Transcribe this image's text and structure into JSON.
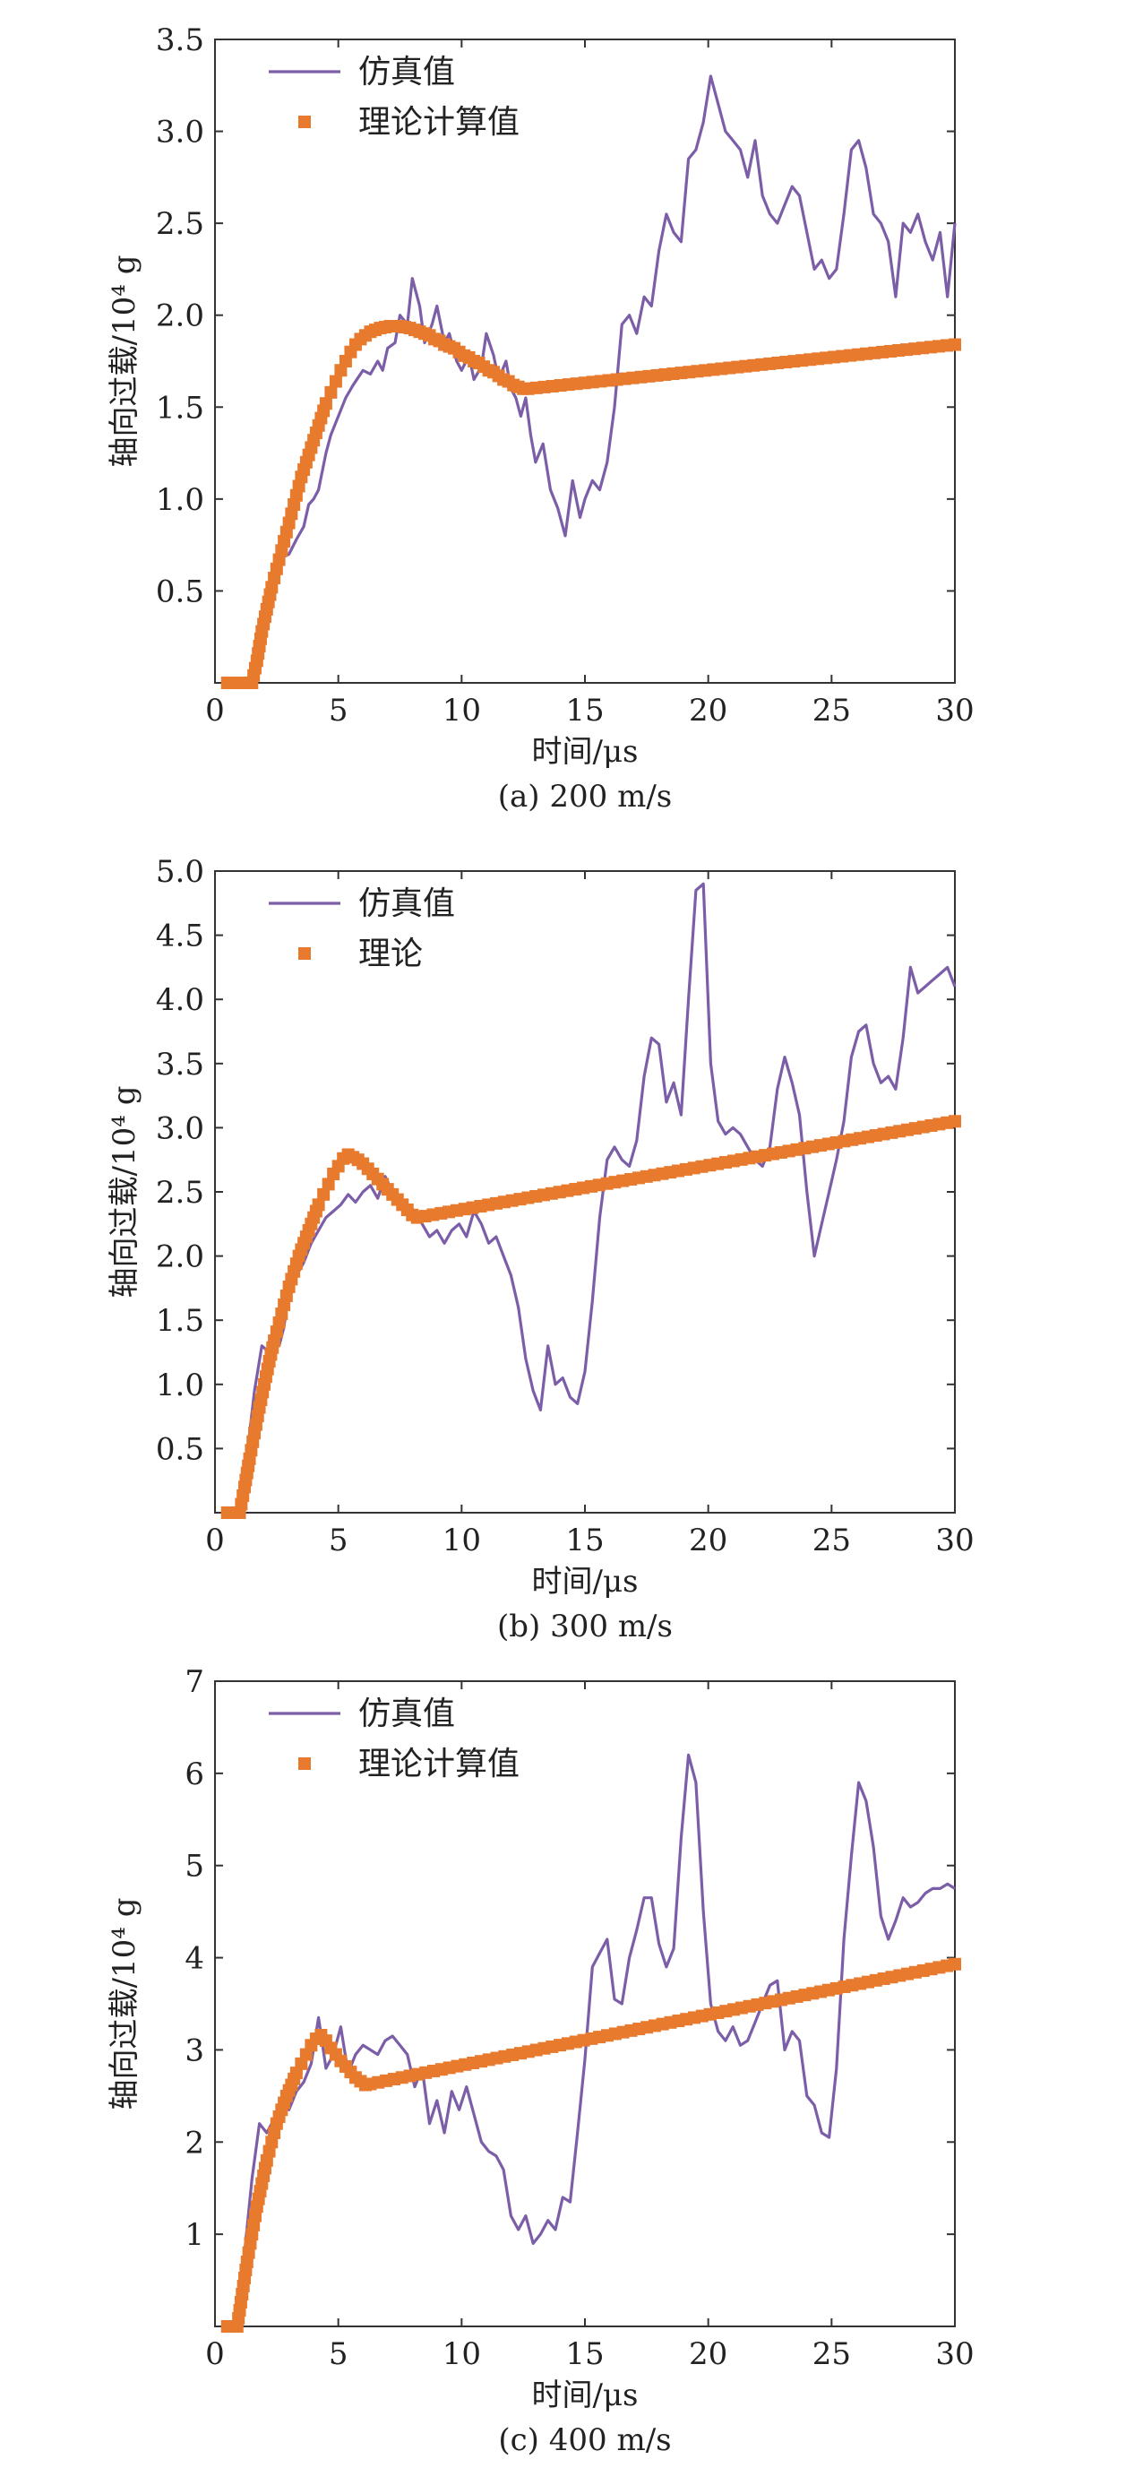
{
  "chart_data": [
    {
      "type": "line",
      "caption": "(a) 200 m/s",
      "xlabel": "时间/μs",
      "ylabel": "轴向过载/10⁴ g",
      "xlim": [
        0,
        30
      ],
      "ylim": [
        0,
        3.5
      ],
      "xticks": [
        "0",
        "5",
        "10",
        "15",
        "20",
        "25",
        "30"
      ],
      "yticks": [
        "0.5",
        "1.0",
        "1.5",
        "2.0",
        "2.5",
        "3.0",
        "3.5"
      ],
      "legend_position": "top-left",
      "series": [
        {
          "name": "仿真值",
          "style": "line",
          "color": "#7b5ea7",
          "x": [
            0.5,
            1.6,
            2.0,
            2.3,
            2.7,
            3.0,
            3.3,
            3.6,
            3.8,
            4.0,
            4.2,
            4.5,
            4.7,
            5.0,
            5.3,
            5.6,
            6.0,
            6.3,
            6.6,
            6.8,
            7.0,
            7.3,
            7.5,
            7.8,
            8.0,
            8.3,
            8.5,
            8.8,
            9.0,
            9.3,
            9.5,
            9.8,
            10.0,
            10.3,
            10.5,
            10.8,
            11.0,
            11.3,
            11.5,
            11.8,
            12.0,
            12.2,
            12.4,
            12.6,
            12.8,
            13.0,
            13.3,
            13.6,
            13.9,
            14.2,
            14.5,
            14.8,
            15.0,
            15.3,
            15.6,
            15.9,
            16.2,
            16.5,
            16.8,
            17.1,
            17.4,
            17.7,
            18.0,
            18.3,
            18.6,
            18.9,
            19.2,
            19.5,
            19.8,
            20.1,
            20.4,
            20.7,
            21.0,
            21.3,
            21.6,
            21.9,
            22.2,
            22.5,
            22.8,
            23.1,
            23.4,
            23.7,
            24.0,
            24.3,
            24.6,
            24.9,
            25.2,
            25.5,
            25.8,
            26.1,
            26.4,
            26.7,
            27.0,
            27.3,
            27.6,
            27.9,
            28.2,
            28.5,
            28.8,
            29.1,
            29.4,
            29.7,
            30.0
          ],
          "y": [
            0,
            0,
            0.35,
            0.58,
            0.68,
            0.7,
            0.78,
            0.85,
            0.97,
            1.0,
            1.05,
            1.25,
            1.35,
            1.45,
            1.55,
            1.62,
            1.7,
            1.68,
            1.75,
            1.7,
            1.82,
            1.85,
            2.0,
            1.95,
            2.2,
            2.05,
            1.85,
            1.95,
            2.05,
            1.85,
            1.9,
            1.75,
            1.7,
            1.78,
            1.65,
            1.72,
            1.9,
            1.78,
            1.65,
            1.75,
            1.6,
            1.55,
            1.45,
            1.55,
            1.35,
            1.2,
            1.3,
            1.05,
            0.95,
            0.8,
            1.1,
            0.9,
            1.0,
            1.1,
            1.05,
            1.2,
            1.5,
            1.95,
            2.0,
            1.9,
            2.1,
            2.05,
            2.35,
            2.55,
            2.45,
            2.4,
            2.85,
            2.9,
            3.05,
            3.3,
            3.15,
            3.0,
            2.95,
            2.9,
            2.75,
            2.95,
            2.65,
            2.55,
            2.5,
            2.6,
            2.7,
            2.65,
            2.45,
            2.25,
            2.3,
            2.2,
            2.25,
            2.55,
            2.9,
            2.95,
            2.8,
            2.55,
            2.5,
            2.4,
            2.1,
            2.5,
            2.45,
            2.55,
            2.4,
            2.3,
            2.45,
            2.1,
            2.5
          ]
        },
        {
          "name": "理论计算值",
          "style": "markers",
          "color": "#e87a2e",
          "x": [
            0.5,
            1.5,
            1.7,
            1.9,
            2.1,
            2.3,
            2.5,
            2.7,
            2.9,
            3.1,
            3.3,
            3.5,
            3.7,
            3.9,
            4.1,
            4.3,
            4.5,
            4.7,
            4.9,
            5.1,
            5.3,
            5.5,
            5.7,
            5.9,
            6.1,
            6.3,
            6.5,
            6.7,
            6.9,
            7.1,
            7.3,
            7.5,
            7.7,
            7.9,
            8.1,
            8.3,
            8.5,
            8.7,
            8.9,
            9.1,
            9.3,
            9.5,
            9.7,
            9.9,
            10.1,
            10.3,
            10.5,
            10.7,
            10.9,
            11.1,
            11.3,
            11.5,
            11.7,
            11.9,
            12.1,
            12.3,
            12.5,
            12.7,
            30.0
          ],
          "y": [
            0,
            0,
            0.12,
            0.28,
            0.4,
            0.52,
            0.62,
            0.72,
            0.82,
            0.92,
            1.02,
            1.12,
            1.2,
            1.28,
            1.36,
            1.44,
            1.52,
            1.58,
            1.64,
            1.7,
            1.75,
            1.8,
            1.84,
            1.87,
            1.89,
            1.91,
            1.92,
            1.93,
            1.935,
            1.94,
            1.94,
            1.94,
            1.935,
            1.93,
            1.92,
            1.91,
            1.9,
            1.89,
            1.87,
            1.86,
            1.84,
            1.83,
            1.82,
            1.8,
            1.78,
            1.77,
            1.75,
            1.74,
            1.72,
            1.7,
            1.69,
            1.67,
            1.65,
            1.64,
            1.62,
            1.61,
            1.6,
            1.6,
            1.84
          ]
        }
      ]
    },
    {
      "type": "line",
      "caption": "(b) 300 m/s",
      "xlabel": "时间/μs",
      "ylabel": "轴向过载/10⁴ g",
      "xlim": [
        0,
        30
      ],
      "ylim": [
        0,
        5.0
      ],
      "xticks": [
        "0",
        "5",
        "10",
        "15",
        "20",
        "25",
        "30"
      ],
      "yticks": [
        "0.5",
        "1.0",
        "1.5",
        "2.0",
        "2.5",
        "3.0",
        "3.5",
        "4.0",
        "4.5",
        "5.0"
      ],
      "legend_position": "top-left",
      "series": [
        {
          "name": "仿真值",
          "style": "line",
          "color": "#7b5ea7",
          "x": [
            0.5,
            1.0,
            1.3,
            1.6,
            1.9,
            2.2,
            2.4,
            2.6,
            2.8,
            3.0,
            3.3,
            3.6,
            3.9,
            4.2,
            4.5,
            4.8,
            5.1,
            5.4,
            5.7,
            6.0,
            6.3,
            6.6,
            6.9,
            7.2,
            7.5,
            7.8,
            8.1,
            8.4,
            8.7,
            9.0,
            9.3,
            9.6,
            9.9,
            10.2,
            10.5,
            10.8,
            11.1,
            11.4,
            11.7,
            12.0,
            12.3,
            12.6,
            12.9,
            13.2,
            13.5,
            13.8,
            14.1,
            14.4,
            14.7,
            15.0,
            15.3,
            15.6,
            15.9,
            16.2,
            16.5,
            16.8,
            17.1,
            17.4,
            17.7,
            18.0,
            18.3,
            18.6,
            18.9,
            19.2,
            19.5,
            19.8,
            20.1,
            20.4,
            20.7,
            21.0,
            21.3,
            21.6,
            21.9,
            22.2,
            22.5,
            22.8,
            23.1,
            23.4,
            23.7,
            24.0,
            24.3,
            24.6,
            24.9,
            25.2,
            25.5,
            25.8,
            26.1,
            26.4,
            26.7,
            27.0,
            27.3,
            27.6,
            27.9,
            28.2,
            28.5,
            28.8,
            29.1,
            29.4,
            29.7,
            30.0
          ],
          "y": [
            0,
            0,
            0.45,
            0.95,
            1.3,
            1.25,
            1.4,
            1.3,
            1.45,
            1.75,
            1.85,
            1.95,
            2.1,
            2.2,
            2.3,
            2.35,
            2.4,
            2.48,
            2.42,
            2.5,
            2.55,
            2.45,
            2.62,
            2.5,
            2.45,
            2.4,
            2.35,
            2.25,
            2.15,
            2.2,
            2.1,
            2.2,
            2.25,
            2.15,
            2.35,
            2.25,
            2.1,
            2.15,
            2.0,
            1.85,
            1.6,
            1.2,
            0.95,
            0.8,
            1.3,
            1.0,
            1.05,
            0.9,
            0.85,
            1.1,
            1.65,
            2.3,
            2.75,
            2.85,
            2.75,
            2.7,
            2.9,
            3.4,
            3.7,
            3.65,
            3.2,
            3.35,
            3.1,
            4.0,
            4.85,
            4.9,
            3.5,
            3.05,
            2.95,
            3.0,
            2.95,
            2.85,
            2.75,
            2.7,
            2.85,
            3.3,
            3.55,
            3.35,
            3.1,
            2.5,
            2.0,
            2.25,
            2.5,
            2.75,
            3.05,
            3.55,
            3.75,
            3.8,
            3.5,
            3.35,
            3.4,
            3.3,
            3.7,
            4.25,
            4.05,
            4.1,
            4.15,
            4.2,
            4.25,
            4.1
          ]
        },
        {
          "name": "理论",
          "style": "markers",
          "color": "#e87a2e",
          "x": [
            0.5,
            1.0,
            1.2,
            1.4,
            1.6,
            1.8,
            2.0,
            2.2,
            2.4,
            2.6,
            2.8,
            3.0,
            3.2,
            3.4,
            3.6,
            3.8,
            4.0,
            4.2,
            4.4,
            4.6,
            4.8,
            5.0,
            5.2,
            5.4,
            5.6,
            5.8,
            6.0,
            6.2,
            6.4,
            6.6,
            6.8,
            7.0,
            7.2,
            7.4,
            7.6,
            7.8,
            8.0,
            8.2,
            30.0
          ],
          "y": [
            0,
            0,
            0.2,
            0.42,
            0.62,
            0.82,
            1.0,
            1.18,
            1.34,
            1.48,
            1.62,
            1.76,
            1.88,
            2.0,
            2.1,
            2.2,
            2.3,
            2.4,
            2.48,
            2.56,
            2.64,
            2.7,
            2.76,
            2.79,
            2.77,
            2.75,
            2.72,
            2.68,
            2.64,
            2.6,
            2.56,
            2.52,
            2.48,
            2.44,
            2.4,
            2.36,
            2.32,
            2.3,
            3.05
          ]
        }
      ]
    },
    {
      "type": "line",
      "caption": "(c) 400 m/s",
      "xlabel": "时间/μs",
      "ylabel": "轴向过载/10⁴ g",
      "xlim": [
        0,
        30
      ],
      "ylim": [
        0,
        7
      ],
      "xticks": [
        "0",
        "5",
        "10",
        "15",
        "20",
        "25",
        "30"
      ],
      "yticks": [
        "1",
        "2",
        "3",
        "4",
        "5",
        "6",
        "7"
      ],
      "legend_position": "top-left",
      "series": [
        {
          "name": "仿真值",
          "style": "line",
          "color": "#7b5ea7",
          "x": [
            0.5,
            0.9,
            1.2,
            1.5,
            1.8,
            2.1,
            2.4,
            2.7,
            3.0,
            3.3,
            3.6,
            3.9,
            4.2,
            4.5,
            4.8,
            5.1,
            5.4,
            5.7,
            6.0,
            6.3,
            6.6,
            6.9,
            7.2,
            7.5,
            7.8,
            8.1,
            8.4,
            8.7,
            9.0,
            9.3,
            9.6,
            9.9,
            10.2,
            10.5,
            10.8,
            11.1,
            11.4,
            11.7,
            12.0,
            12.3,
            12.6,
            12.9,
            13.2,
            13.5,
            13.8,
            14.1,
            14.4,
            14.7,
            15.0,
            15.3,
            15.6,
            15.9,
            16.2,
            16.5,
            16.8,
            17.1,
            17.4,
            17.7,
            18.0,
            18.3,
            18.6,
            18.9,
            19.2,
            19.5,
            19.8,
            20.1,
            20.4,
            20.7,
            21.0,
            21.3,
            21.6,
            21.9,
            22.2,
            22.5,
            22.8,
            23.1,
            23.4,
            23.7,
            24.0,
            24.3,
            24.6,
            24.9,
            25.2,
            25.5,
            25.8,
            26.1,
            26.4,
            26.7,
            27.0,
            27.3,
            27.6,
            27.9,
            28.2,
            28.5,
            28.8,
            29.1,
            29.4,
            29.7,
            30.0
          ],
          "y": [
            0,
            0,
            0.8,
            1.6,
            2.2,
            2.1,
            2.25,
            2.4,
            2.35,
            2.55,
            2.65,
            2.85,
            3.35,
            2.8,
            2.95,
            3.25,
            2.75,
            2.95,
            3.05,
            3.0,
            2.95,
            3.1,
            3.15,
            3.05,
            2.95,
            2.6,
            2.8,
            2.2,
            2.45,
            2.1,
            2.55,
            2.35,
            2.6,
            2.3,
            2.0,
            1.9,
            1.85,
            1.7,
            1.2,
            1.05,
            1.2,
            0.9,
            1.0,
            1.15,
            1.05,
            1.4,
            1.35,
            2.1,
            2.9,
            3.9,
            4.05,
            4.2,
            3.55,
            3.5,
            4.0,
            4.3,
            4.65,
            4.65,
            4.15,
            3.9,
            4.1,
            5.3,
            6.2,
            5.9,
            4.5,
            3.5,
            3.2,
            3.1,
            3.25,
            3.05,
            3.1,
            3.3,
            3.5,
            3.7,
            3.75,
            3.0,
            3.2,
            3.1,
            2.5,
            2.4,
            2.1,
            2.05,
            2.8,
            4.2,
            5.1,
            5.9,
            5.7,
            5.2,
            4.45,
            4.2,
            4.4,
            4.65,
            4.55,
            4.6,
            4.7,
            4.75,
            4.75,
            4.8,
            4.75
          ]
        },
        {
          "name": "理论计算值",
          "style": "markers",
          "color": "#e87a2e",
          "x": [
            0.5,
            0.9,
            1.1,
            1.3,
            1.5,
            1.7,
            1.9,
            2.1,
            2.3,
            2.5,
            2.7,
            2.9,
            3.1,
            3.3,
            3.5,
            3.7,
            3.9,
            4.1,
            4.3,
            4.5,
            4.7,
            4.9,
            5.1,
            5.3,
            5.5,
            5.7,
            5.9,
            6.1,
            6.3,
            30.0
          ],
          "y": [
            0,
            0,
            0.35,
            0.7,
            1.0,
            1.3,
            1.55,
            1.8,
            2.0,
            2.2,
            2.35,
            2.5,
            2.62,
            2.75,
            2.85,
            2.95,
            3.05,
            3.12,
            3.16,
            3.1,
            3.02,
            2.95,
            2.88,
            2.82,
            2.76,
            2.7,
            2.66,
            2.62,
            2.63,
            3.93
          ]
        }
      ]
    }
  ]
}
